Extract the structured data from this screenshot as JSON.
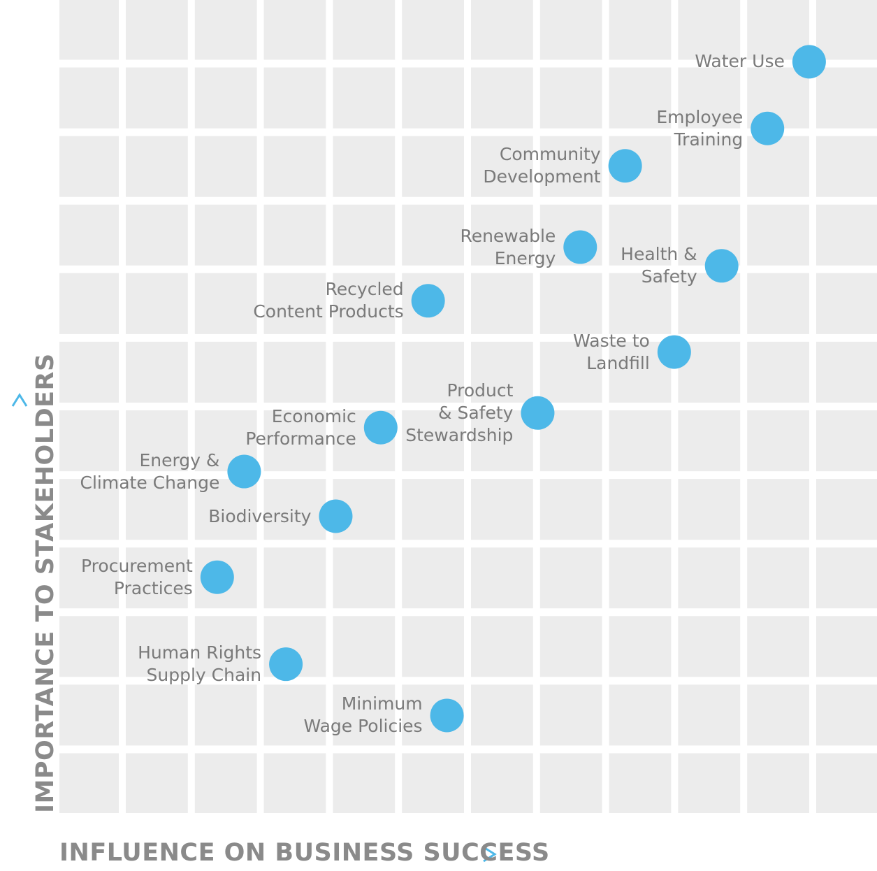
{
  "chart_data": {
    "type": "scatter",
    "x_label": "INFLUENCE ON BUSINESS SUCCESS",
    "y_label": "IMPORTANCE TO STAKEHOLDERS",
    "labels": [
      "Water Use",
      "Employee Training",
      "Community\nDevelopment",
      "Renewable\nEnergy",
      "Health &\nSafety",
      "Recycled\nContent Products",
      "Waste to\nLandfill",
      "Product\n& Safety\nStewardship",
      "Economic\nPerformance",
      "Energy &\nClimate Change",
      "Biodiversity",
      "Procurement\nPractices",
      "Human Rights\nSupply Chain",
      "Minimum\nWage Policies"
    ],
    "x": [
      91.7,
      86.6,
      69.2,
      63.7,
      81.0,
      45.1,
      75.2,
      58.5,
      39.3,
      22.6,
      33.8,
      19.3,
      27.7,
      47.4
    ],
    "values": [
      92.4,
      84.2,
      79.6,
      69.6,
      67.3,
      63.0,
      56.7,
      49.2,
      47.4,
      42.0,
      36.5,
      29.0,
      18.3,
      12.0
    ],
    "color": "#4db8e8",
    "xlim": [
      0,
      100
    ],
    "ylim": [
      0,
      100
    ]
  }
}
